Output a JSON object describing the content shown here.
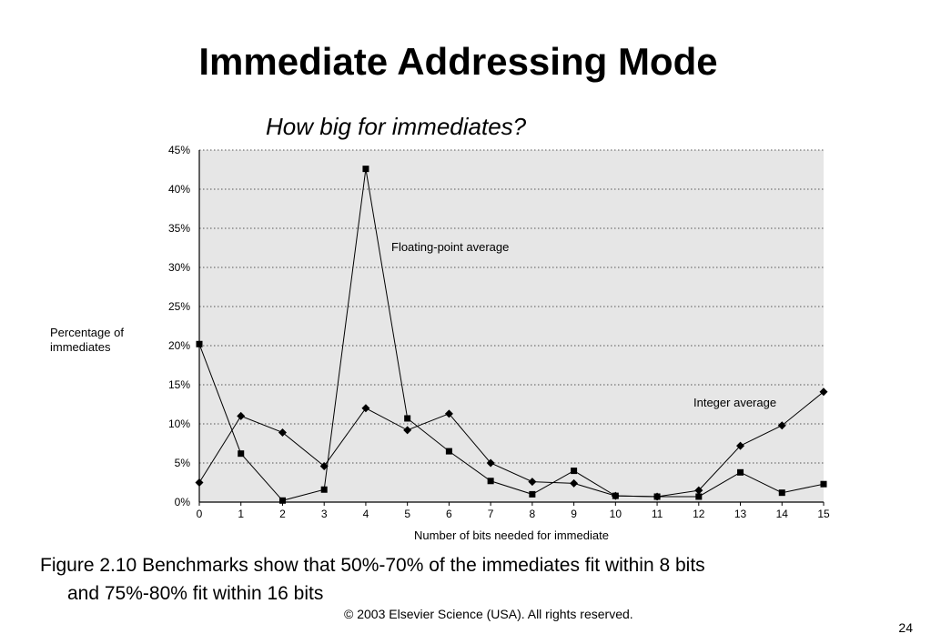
{
  "slide": {
    "title": "Immediate Addressing Mode",
    "subtitle": "How big for immediates?",
    "caption_line1": "Figure 2.10 Benchmarks show that 50%-70% of the immediates fit within 8 bits",
    "caption_line2": "and 75%-80% fit within 16 bits",
    "copyright": "© 2003 Elsevier Science (USA). All rights reserved.",
    "page_number": "24"
  },
  "chart_data": {
    "type": "line",
    "title": "",
    "xlabel": "Number of bits needed for immediate",
    "ylabel_lines": [
      "Percentage of",
      "immediates"
    ],
    "x": [
      0,
      1,
      2,
      3,
      4,
      5,
      6,
      7,
      8,
      9,
      10,
      11,
      12,
      13,
      14,
      15
    ],
    "xlim": [
      0,
      15
    ],
    "ylim": [
      0,
      45
    ],
    "y_ticks": [
      "0%",
      "5%",
      "10%",
      "15%",
      "20%",
      "25%",
      "30%",
      "35%",
      "40%",
      "45%"
    ],
    "grid": "horizontal dotted",
    "plot_background": "#e6e6e6",
    "series": [
      {
        "name": "Floating-point average",
        "marker": "square",
        "values": [
          20.2,
          6.2,
          0.2,
          1.6,
          42.6,
          10.7,
          6.5,
          2.7,
          1.0,
          4.0,
          0.8,
          0.7,
          0.7,
          3.8,
          1.2,
          2.3
        ]
      },
      {
        "name": "Integer average",
        "marker": "diamond",
        "values": [
          2.5,
          11.0,
          8.9,
          4.6,
          12.0,
          9.2,
          11.3,
          5.0,
          2.6,
          2.4,
          0.8,
          0.7,
          1.5,
          7.2,
          9.8,
          14.1
        ]
      }
    ],
    "annotations": [
      "Floating-point average",
      "Integer average"
    ]
  }
}
